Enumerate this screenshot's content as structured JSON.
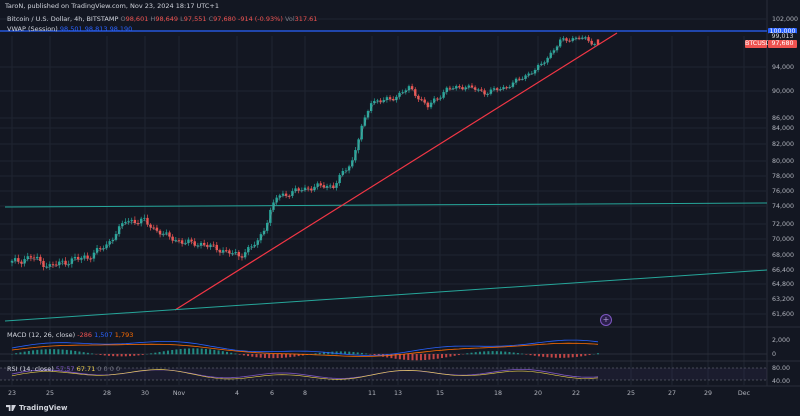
{
  "header": {
    "publisher_line": "TaroN, published on TradingView.com, Nov 23, 2024 18:17 UTC+1",
    "symbol": "Bitcoin / U.S. Dollar, 4h, BITSTAMP",
    "ohlc": {
      "o_label": "O",
      "o": "98,601",
      "h_label": "H",
      "h": "98,649",
      "l_label": "L",
      "l": "97,551",
      "c_label": "C",
      "c": "97,680",
      "change": "-914 (-0.93%)",
      "vol_label": "Vol",
      "vol": "317.61"
    },
    "vwap_label": "VWAP (Session)",
    "vwap_values": [
      "98,501",
      "98,813",
      "98,190"
    ]
  },
  "price_axis": {
    "ticks": [
      "102,000",
      "94,000",
      "90,000",
      "86,000",
      "84,000",
      "82,000",
      "80,000",
      "78,000",
      "76,000",
      "74,000",
      "72,000",
      "70,000",
      "68,000",
      "66,400",
      "64,800",
      "63,200",
      "61,600"
    ],
    "tag_100000": "100,000",
    "tag_99013": "99,013",
    "symbol_tag": "BTCUSD",
    "last_price_tag": "97,680",
    "colors": {
      "up": "#26a69a",
      "down": "#ef5350",
      "blue_line": "#2962ff",
      "teal_line": "#26a69a"
    }
  },
  "macd": {
    "label": "MACD (12, 26, close)",
    "values": [
      "-286",
      "1,507",
      "1,793"
    ],
    "axis": [
      "2,000",
      "0"
    ]
  },
  "rsi": {
    "label": "RSI (14, close)",
    "values": [
      "57.57",
      "67.71",
      "0",
      "0",
      "0",
      "0"
    ],
    "axis": [
      "80.00",
      "40.00"
    ]
  },
  "time_axis": [
    "23",
    "25",
    "28",
    "30",
    "Nov",
    "4",
    "6",
    "8",
    "11",
    "13",
    "15",
    "18",
    "20",
    "22",
    "25",
    "27",
    "29",
    "Dec"
  ],
  "footer": {
    "brand": "TradingView"
  },
  "chart_data": {
    "type": "line",
    "title": "Bitcoin / U.S. Dollar, 4h, BITSTAMP",
    "xlabel": "",
    "ylabel": "",
    "ylim": [
      61000,
      103000
    ],
    "grid": true,
    "series": [
      {
        "x": [
          "Oct 23",
          "Oct 24",
          "Oct 25",
          "Oct 26",
          "Oct 27",
          "Oct 28",
          "Oct 29",
          "Oct 30",
          "Oct 31",
          "Nov 1",
          "Nov 2",
          "Nov 3",
          "Nov 4",
          "Nov 5",
          "Nov 6",
          "Nov 7",
          "Nov 8",
          "Nov 9",
          "Nov 10",
          "Nov 11",
          "Nov 12",
          "Nov 13",
          "Nov 14",
          "Nov 15",
          "Nov 16",
          "Nov 17",
          "Nov 18",
          "Nov 19",
          "Nov 20",
          "Nov 21",
          "Nov 22",
          "Nov 23"
        ],
        "values": [
          67200,
          67800,
          66800,
          67400,
          67800,
          69200,
          72400,
          72300,
          70600,
          69600,
          69400,
          68700,
          67900,
          69600,
          75200,
          76000,
          76600,
          76700,
          80000,
          88500,
          88700,
          90500,
          87700,
          90300,
          90800,
          89800,
          90500,
          92200,
          94300,
          98300,
          99000,
          97680
        ]
      }
    ],
    "annotations": {
      "horizontal_levels": [
        100000,
        74600
      ],
      "trendlines": [
        "rising support line",
        "long-term rising line"
      ]
    }
  }
}
